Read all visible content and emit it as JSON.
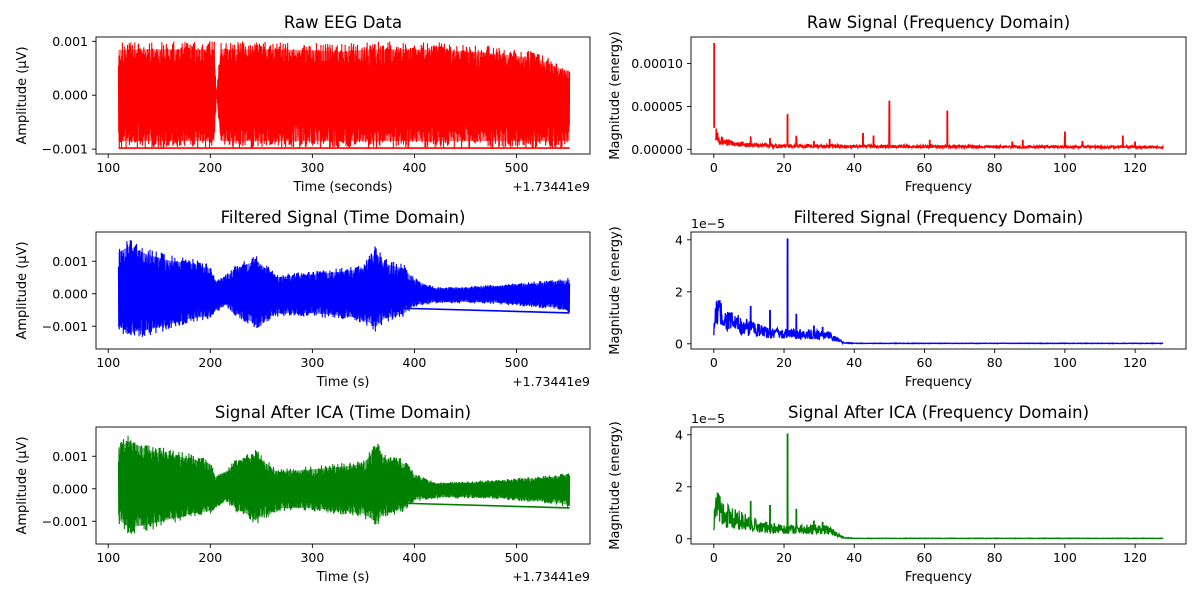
{
  "figure": {
    "colors": {
      "raw": "#ff0000",
      "filtered": "#0000ff",
      "ica": "#008000"
    }
  },
  "chart_data": [
    {
      "type": "line",
      "title": "Raw EEG Data",
      "xlabel": "Time (seconds)",
      "ylabel": "Amplitude (µV)",
      "offset_label": "+1.73441e9",
      "color": "#ff0000",
      "xlim": [
        88,
        572
      ],
      "ylim": [
        -0.00109,
        0.00108
      ],
      "xticks": [
        100,
        200,
        300,
        400,
        500
      ],
      "xticklabels": [
        "100",
        "200",
        "300",
        "400",
        "500"
      ],
      "yticks": [
        -0.001,
        0.0,
        0.001
      ],
      "yticklabels": [
        "−0.001",
        "0.000",
        "0.001"
      ],
      "envelope": {
        "x": [
          110,
          150,
          200,
          204,
          206,
          210,
          250,
          300,
          330,
          350,
          370,
          400,
          430,
          460,
          490,
          520,
          540,
          552
        ],
        "upper": [
          0.00099,
          0.001,
          0.001,
          0.001,
          0.0,
          0.001,
          0.001,
          0.00098,
          0.00095,
          0.00099,
          0.001,
          0.001,
          0.00098,
          0.00094,
          0.00088,
          0.0008,
          0.0006,
          0.00052
        ],
        "lower": [
          -0.001,
          -0.001,
          -0.001,
          -0.001,
          0.0,
          -0.001,
          -0.001,
          -0.001,
          -0.001,
          -0.001,
          -0.001,
          -0.001,
          -0.001,
          -0.001,
          -0.001,
          -0.001,
          -0.001,
          -0.001
        ]
      },
      "baseline": {
        "x": [
          110,
          552
        ],
        "y": [
          -0.00098,
          -0.00098
        ]
      }
    },
    {
      "type": "line",
      "title": "Raw Signal (Frequency Domain)",
      "xlabel": "Frequency",
      "ylabel": "Magnitude (energy)",
      "offset_label": "",
      "color": "#ff0000",
      "xlim": [
        -6.5,
        134.5
      ],
      "ylim": [
        -5.5e-06,
        0.000131
      ],
      "xticks": [
        0,
        20,
        40,
        60,
        80,
        100,
        120
      ],
      "xticklabels": [
        "0",
        "20",
        "40",
        "60",
        "80",
        "100",
        "120"
      ],
      "yticks": [
        0.0,
        5e-05,
        0.0001
      ],
      "yticklabels": [
        "0.00000",
        "0.00005",
        "0.00010"
      ],
      "floor": {
        "x": [
          0.5,
          2,
          5,
          10,
          20,
          40,
          80,
          128
        ],
        "y": [
          2.5e-05,
          1.2e-05,
          8e-06,
          6e-06,
          4.5e-06,
          4e-06,
          3.5e-06,
          3e-06
        ]
      },
      "peaks": {
        "x": [
          0.1,
          10.5,
          16,
          21,
          23.5,
          28.5,
          33,
          42.5,
          45.5,
          50,
          61.5,
          66.5,
          85,
          88,
          100,
          105,
          116.5,
          120
        ],
        "y": [
          0.000124,
          1.5e-05,
          1.3e-05,
          4.1e-05,
          1.5e-05,
          9e-06,
          1.2e-05,
          1.9e-05,
          1.6e-05,
          5.6e-05,
          1.1e-05,
          4.5e-05,
          9e-06,
          1.1e-05,
          2e-05,
          9e-06,
          1.6e-05,
          9e-06
        ]
      }
    },
    {
      "type": "line",
      "title": "Filtered Signal (Time Domain)",
      "xlabel": "Time (s)",
      "ylabel": "Amplitude (µV)",
      "offset_label": "+1.73441e9",
      "color": "#0000ff",
      "xlim": [
        88,
        572
      ],
      "ylim": [
        -0.0017,
        0.0019
      ],
      "xticks": [
        100,
        200,
        300,
        400,
        500
      ],
      "xticklabels": [
        "100",
        "200",
        "300",
        "400",
        "500"
      ],
      "yticks": [
        -0.001,
        0.0,
        0.001
      ],
      "yticklabels": [
        "−0.001",
        "0.000",
        "0.001"
      ],
      "envelope": {
        "x": [
          110,
          120,
          140,
          160,
          180,
          200,
          205,
          215,
          225,
          245,
          265,
          300,
          330,
          350,
          362,
          370,
          390,
          400,
          420,
          450,
          480,
          510,
          540,
          552
        ],
        "upper": [
          0.0015,
          0.0017,
          0.0014,
          0.0012,
          0.0011,
          0.0009,
          0.0004,
          0.0006,
          0.0009,
          0.0012,
          0.0006,
          0.0007,
          0.0008,
          0.0009,
          0.0015,
          0.0011,
          0.0009,
          0.0005,
          0.0002,
          0.00022,
          0.00028,
          0.00035,
          0.00045,
          0.0005
        ],
        "lower": [
          -0.0011,
          -0.0014,
          -0.0013,
          -0.0011,
          -0.0009,
          -0.0008,
          -0.0006,
          -0.0004,
          -0.0007,
          -0.0011,
          -0.0007,
          -0.0007,
          -0.0008,
          -0.0009,
          -0.0012,
          -0.0009,
          -0.0007,
          -0.0004,
          -0.0003,
          -0.0003,
          -0.00032,
          -0.0004,
          -0.0005,
          -0.0006
        ]
      },
      "baseline": {
        "x": [
          110,
          552
        ],
        "y": [
          -0.0002,
          -0.00059
        ]
      }
    },
    {
      "type": "line",
      "title": "Filtered Signal (Frequency Domain)",
      "xlabel": "Frequency",
      "ylabel": "Magnitude (energy)",
      "offset_label": "1e−5",
      "color": "#0000ff",
      "xlim": [
        -6.5,
        134.5
      ],
      "ylim": [
        -2e-06,
        4.3e-05
      ],
      "xticks": [
        0,
        20,
        40,
        60,
        80,
        100,
        120
      ],
      "xticklabels": [
        "0",
        "20",
        "40",
        "60",
        "80",
        "100",
        "120"
      ],
      "yticks": [
        0.0,
        2e-05,
        4e-05
      ],
      "yticklabels": [
        "0",
        "2",
        "4"
      ],
      "floor": {
        "x": [
          0,
          1,
          3,
          6,
          10,
          15,
          20,
          25,
          30,
          33,
          35,
          37,
          40,
          128
        ],
        "y": [
          8e-06,
          1.5e-05,
          1.1e-05,
          9e-06,
          7e-06,
          5e-06,
          4.5e-06,
          4.5e-06,
          4e-06,
          4e-06,
          2e-06,
          5e-07,
          2e-07,
          2e-07
        ]
      },
      "peaks": {
        "x": [
          1.5,
          10.5,
          16,
          21,
          23.5,
          28.5,
          31
        ],
        "y": [
          1.65e-05,
          1.45e-05,
          1.3e-05,
          4.05e-05,
          1.15e-05,
          7e-06,
          6.5e-06
        ]
      }
    },
    {
      "type": "line",
      "title": "Signal After ICA (Time Domain)",
      "xlabel": "Time (s)",
      "ylabel": "Amplitude (µV)",
      "offset_label": "+1.73441e9",
      "color": "#008000",
      "xlim": [
        88,
        572
      ],
      "ylim": [
        -0.0017,
        0.0019
      ],
      "xticks": [
        100,
        200,
        300,
        400,
        500
      ],
      "xticklabels": [
        "100",
        "200",
        "300",
        "400",
        "500"
      ],
      "yticks": [
        -0.001,
        0.0,
        0.001
      ],
      "yticklabels": [
        "−0.001",
        "0.000",
        "0.001"
      ],
      "envelope": {
        "x": [
          110,
          120,
          140,
          160,
          180,
          200,
          205,
          215,
          225,
          245,
          265,
          300,
          330,
          350,
          362,
          370,
          390,
          400,
          420,
          450,
          480,
          510,
          540,
          552
        ],
        "upper": [
          0.0015,
          0.0017,
          0.0014,
          0.0012,
          0.0011,
          0.0009,
          0.0004,
          0.0006,
          0.0009,
          0.0012,
          0.0006,
          0.0007,
          0.0008,
          0.0009,
          0.0015,
          0.0011,
          0.0009,
          0.0005,
          0.0002,
          0.00022,
          0.00028,
          0.00035,
          0.00045,
          0.0005
        ],
        "lower": [
          -0.0011,
          -0.0014,
          -0.0013,
          -0.0011,
          -0.0009,
          -0.0008,
          -0.0006,
          -0.0004,
          -0.0007,
          -0.0011,
          -0.0007,
          -0.0007,
          -0.0008,
          -0.0009,
          -0.0012,
          -0.0009,
          -0.0007,
          -0.0004,
          -0.0003,
          -0.0003,
          -0.00032,
          -0.0004,
          -0.0005,
          -0.0006
        ]
      },
      "baseline": {
        "x": [
          110,
          552
        ],
        "y": [
          -0.0002,
          -0.00059
        ]
      }
    },
    {
      "type": "line",
      "title": "Signal After ICA (Frequency Domain)",
      "xlabel": "Frequency",
      "ylabel": "Magnitude (energy)",
      "offset_label": "1e−5",
      "color": "#008000",
      "xlim": [
        -6.5,
        134.5
      ],
      "ylim": [
        -2e-06,
        4.3e-05
      ],
      "xticks": [
        0,
        20,
        40,
        60,
        80,
        100,
        120
      ],
      "xticklabels": [
        "0",
        "20",
        "40",
        "60",
        "80",
        "100",
        "120"
      ],
      "yticks": [
        0.0,
        2e-05,
        4e-05
      ],
      "yticklabels": [
        "0",
        "2",
        "4"
      ],
      "floor": {
        "x": [
          0,
          1,
          3,
          6,
          10,
          15,
          20,
          25,
          30,
          33,
          35,
          37,
          40,
          128
        ],
        "y": [
          8e-06,
          1.5e-05,
          1.1e-05,
          9e-06,
          7e-06,
          5e-06,
          4.5e-06,
          4.5e-06,
          4e-06,
          4e-06,
          2e-06,
          5e-07,
          2e-07,
          2e-07
        ]
      },
      "peaks": {
        "x": [
          1.5,
          10.5,
          16,
          21,
          23.5,
          28.5,
          31
        ],
        "y": [
          1.65e-05,
          1.45e-05,
          1.3e-05,
          4.05e-05,
          1.15e-05,
          7e-06,
          6.5e-06
        ]
      }
    }
  ]
}
